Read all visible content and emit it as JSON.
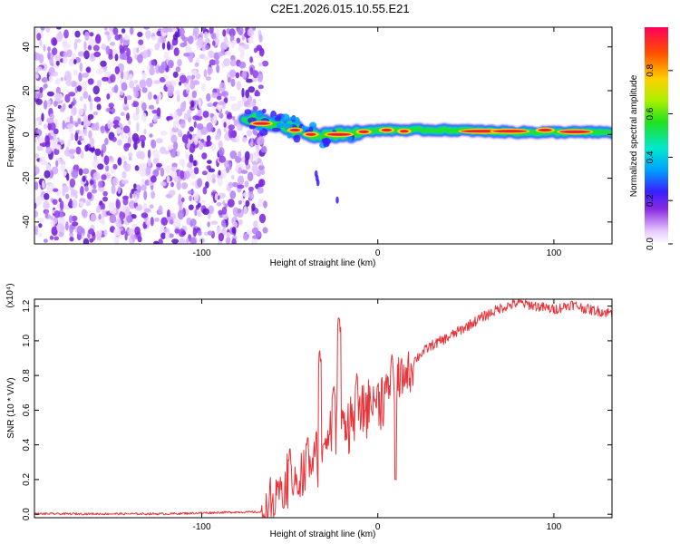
{
  "title": "C2E1.2026.015.10.55.E21",
  "colors": {
    "speckle": "#7a1ee0",
    "band_core": "#e8203a",
    "snr_line": "#e8343a"
  },
  "chart_data": [
    {
      "type": "heatmap",
      "xlabel": "Height of straight line (km)",
      "ylabel": "Frequency (Hz)",
      "xlim": [
        -195,
        133
      ],
      "ylim": [
        -50,
        49
      ],
      "xticks": [
        -100,
        0,
        100
      ],
      "xtick_labels": [
        "-100",
        "0",
        "100"
      ],
      "yticks": [
        -40,
        -20,
        0,
        20,
        40
      ],
      "ytick_labels": [
        "-40",
        "-20",
        "0",
        "20",
        "40"
      ],
      "colorbar": {
        "label": "Normalized spectral amplitude",
        "range": [
          0,
          1
        ],
        "ticks": [
          0.0,
          0.2,
          0.4,
          0.6,
          0.8
        ],
        "tick_labels": [
          "0.0",
          "0.2",
          "0.4",
          "0.6",
          "0.8"
        ]
      },
      "noise_region_x": [
        -195,
        -68
      ],
      "band_center_y": [
        {
          "x": -75,
          "y": 8
        },
        {
          "x": -60,
          "y": 5
        },
        {
          "x": -45,
          "y": 2
        },
        {
          "x": -35,
          "y": 0
        },
        {
          "x": -20,
          "y": 0
        },
        {
          "x": 0,
          "y": 2
        },
        {
          "x": 40,
          "y": 2
        },
        {
          "x": 80,
          "y": 1
        },
        {
          "x": 133,
          "y": 1
        }
      ]
    },
    {
      "type": "line",
      "xlabel": "Height of straight line (km)",
      "ylabel": "SNR (10 * V/V)",
      "scale_label": "(x10⁴)",
      "xlim": [
        -195,
        133
      ],
      "ylim": [
        -0.02,
        1.24
      ],
      "xticks": [
        -100,
        0,
        100
      ],
      "xtick_labels": [
        "-100",
        "0",
        "100"
      ],
      "yticks": [
        0.0,
        0.2,
        0.4,
        0.6,
        0.8,
        1.0,
        1.2
      ],
      "ytick_labels": [
        "0.0",
        "0.2",
        "0.4",
        "0.6",
        "0.8",
        "1.0",
        "1.2"
      ],
      "series": [
        {
          "name": "SNR",
          "x": [
            -195,
            -120,
            -80,
            -66,
            -60,
            -55,
            -50,
            -45,
            -40,
            -35,
            -30,
            -25,
            -20,
            -15,
            -10,
            -5,
            0,
            5,
            10,
            15,
            20,
            25,
            30,
            40,
            50,
            60,
            70,
            80,
            90,
            100,
            110,
            120,
            133
          ],
          "y": [
            0.0,
            0.0,
            0.01,
            0.01,
            0.05,
            0.15,
            0.18,
            0.22,
            0.25,
            0.35,
            0.45,
            0.5,
            0.55,
            0.55,
            0.6,
            0.65,
            0.68,
            0.72,
            0.75,
            0.8,
            0.88,
            0.93,
            0.97,
            1.02,
            1.08,
            1.14,
            1.19,
            1.22,
            1.2,
            1.18,
            1.21,
            1.18,
            1.16
          ]
        }
      ],
      "spikes": [
        {
          "x": -50,
          "y": 0.38
        },
        {
          "x": -40,
          "y": 0.45
        },
        {
          "x": -33,
          "y": 0.95
        },
        {
          "x": -25,
          "y": 0.75
        },
        {
          "x": -22,
          "y": 1.15
        },
        {
          "x": -12,
          "y": 0.82
        },
        {
          "x": 8,
          "y": 0.92
        },
        {
          "x": 10,
          "y": 0.2
        }
      ]
    }
  ]
}
